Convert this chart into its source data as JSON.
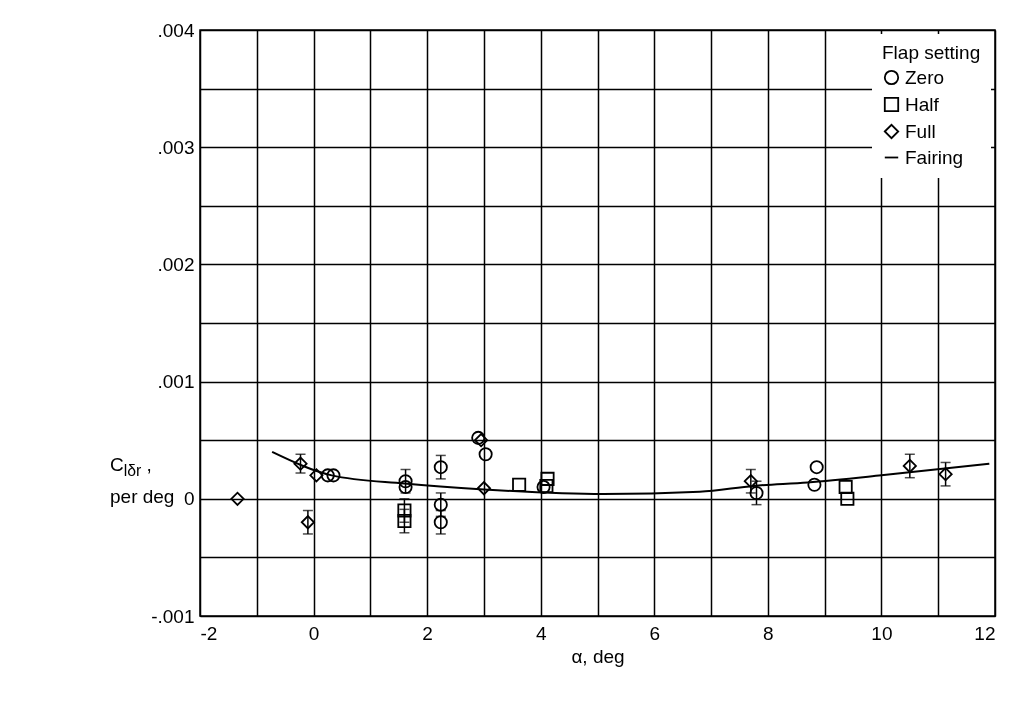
{
  "chart_data": {
    "type": "scatter",
    "xlabel": "α, deg",
    "ylabel": "C$_{lδr}$ , per deg",
    "legend_title": "Flap setting",
    "legend": "top right",
    "grid": true,
    "xlim": [
      -2,
      12
    ],
    "xticks": [
      -2,
      {
        "value": -1,
        "label": null
      },
      0,
      {
        "value": 1,
        "label": null
      },
      2,
      {
        "value": 3,
        "label": null
      },
      4,
      {
        "value": 5,
        "label": null
      },
      6,
      {
        "value": 7,
        "label": null
      },
      8,
      {
        "value": 9,
        "label": null
      },
      10,
      {
        "value": 11,
        "label": null
      },
      12
    ],
    "ylim": [
      -0.001,
      0.004
    ],
    "yticks": [
      {
        "value": -0.001,
        "label": "-.001"
      },
      {
        "value": -0.0005,
        "label": null
      },
      0,
      {
        "value": 0.0005,
        "label": null
      },
      {
        "value": 0.001,
        "label": ".001"
      },
      {
        "value": 0.0015,
        "label": null
      },
      {
        "value": 0.002,
        "label": ".002"
      },
      {
        "value": 0.0025,
        "label": null
      },
      {
        "value": 0.003,
        "label": ".003"
      },
      {
        "value": 0.0035,
        "label": null
      },
      {
        "value": 0.004,
        "label": ".004"
      }
    ],
    "series": [
      {
        "name": "Zero",
        "marker": "circle",
        "color": "#000000",
        "x": [
          0.25,
          0.35,
          1.62,
          1.62,
          2.24,
          2.24,
          2.24,
          2.9,
          3.03,
          4.05,
          7.8,
          8.86,
          8.82
        ],
        "values": [
          0.0002,
          0.0002,
          0.00015,
          0.0001,
          0.00027,
          -5e-05,
          -0.0002,
          0.00052,
          0.00038,
          0.0001,
          5e-05,
          0.00027,
          0.00012
        ],
        "errors": [
          null,
          null,
          0.0001,
          null,
          0.0001,
          0.0001,
          0.0001,
          null,
          null,
          null,
          0.0001,
          null,
          null
        ]
      },
      {
        "name": "Half",
        "marker": "square",
        "color": "#000000",
        "x": [
          1.6,
          1.6,
          3.62,
          4.12,
          4.1,
          9.37,
          9.4
        ],
        "values": [
          -0.0001,
          -0.00019,
          0.00012,
          0.00017,
          0.00011,
          0.0001,
          0.0
        ],
        "errors": [
          0.0001,
          0.0001,
          null,
          null,
          null,
          null,
          null
        ]
      },
      {
        "name": "Full",
        "marker": "diamond",
        "color": "#000000",
        "x": [
          -1.34,
          -0.23,
          -0.1,
          0.05,
          3.0,
          2.95,
          7.7,
          10.5,
          11.13
        ],
        "values": [
          0.0,
          0.0003,
          -0.0002,
          0.0002,
          9e-05,
          0.0005,
          0.00015,
          0.00028,
          0.00021
        ],
        "errors": [
          null,
          8e-05,
          0.0001,
          null,
          null,
          null,
          0.0001,
          0.0001,
          0.0001
        ]
      },
      {
        "name": "Fairing",
        "type": "line",
        "marker": "none",
        "line_style": "solid",
        "color": "#000000",
        "x": [
          -0.73,
          0.32,
          1.6,
          3.0,
          5.1,
          6.8,
          7.75,
          8.7,
          10.0,
          11.9
        ],
        "values": [
          0.0004,
          0.0002,
          0.00013,
          8e-05,
          4e-05,
          6e-05,
          0.00011,
          0.00014,
          0.0002,
          0.0003
        ]
      }
    ]
  }
}
